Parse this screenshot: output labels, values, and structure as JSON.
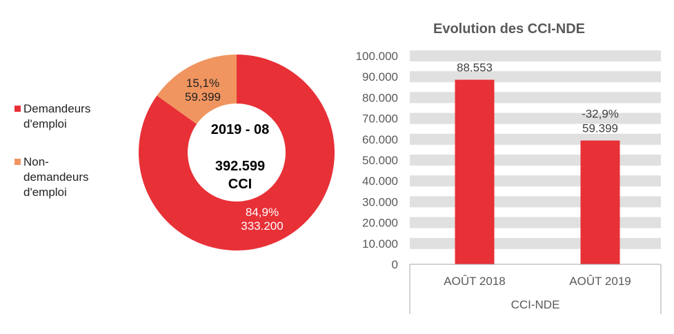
{
  "chart_data": [
    {
      "type": "pie",
      "variant": "donut",
      "center_label": {
        "period": "2019 - 08",
        "total": "392.599",
        "unit": "CCI"
      },
      "legend_position": "left",
      "slices": [
        {
          "name": "Demandeurs d'emploi",
          "legend_lines": [
            "Demandeurs",
            "d'emploi"
          ],
          "value": 333200,
          "percent": 84.9,
          "pct_label": "84,9%",
          "value_label": "333.200",
          "color": "#E83037",
          "label_color": "#FFFFFF"
        },
        {
          "name": "Non-demandeurs d'emploi",
          "legend_lines": [
            "Non-",
            "demandeurs",
            "d'emploi"
          ],
          "value": 59399,
          "percent": 15.1,
          "pct_label": "15,1%",
          "value_label": "59.399",
          "color": "#F0955F",
          "label_color": "#222222"
        }
      ]
    },
    {
      "type": "bar",
      "title": "Evolution des CCI-NDE",
      "categories": [
        "AOÛT 2018",
        "AOÛT 2019"
      ],
      "group_label": "CCI-NDE",
      "values": [
        88553,
        59399
      ],
      "data_labels": [
        [
          "88.553"
        ],
        [
          "-32,9%",
          "59.399"
        ]
      ],
      "ylim": [
        0,
        100000
      ],
      "yticks": [
        0,
        10000,
        20000,
        30000,
        40000,
        50000,
        60000,
        70000,
        80000,
        90000,
        100000
      ],
      "ytick_labels": [
        "0",
        "10.000",
        "20.000",
        "30.000",
        "40.000",
        "50.000",
        "60.000",
        "70.000",
        "80.000",
        "90.000",
        "100.000"
      ],
      "grid": "banded",
      "bar_color": "#E83037",
      "grid_color": "#E0E0E0"
    }
  ]
}
